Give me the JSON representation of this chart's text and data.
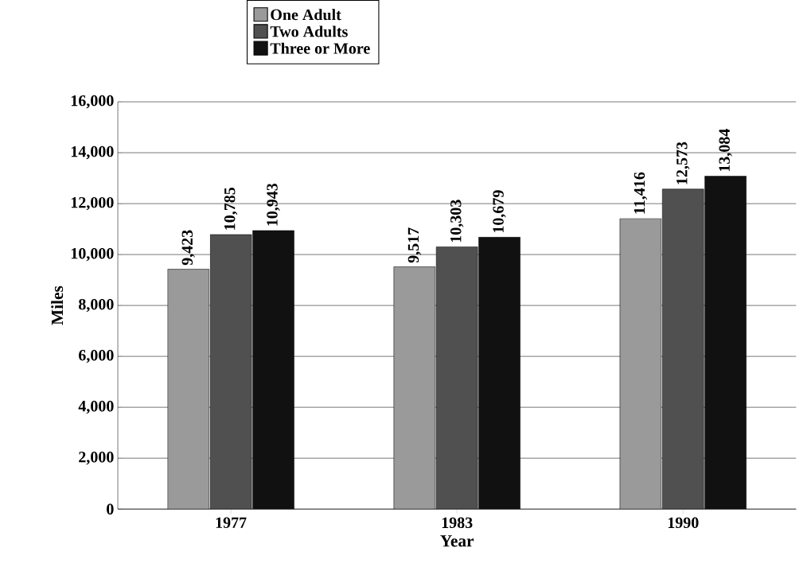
{
  "chart_data": {
    "type": "bar",
    "xlabel": "Year",
    "ylabel": "Miles",
    "categories": [
      "1977",
      "1983",
      "1990"
    ],
    "series": [
      {
        "name": "One Adult",
        "color": "#9a9a9a",
        "values": [
          9423,
          9517,
          11416
        ],
        "value_labels": [
          "9,423",
          "9,517",
          "11,416"
        ]
      },
      {
        "name": "Two Adults",
        "color": "#505050",
        "values": [
          10785,
          10303,
          12573
        ],
        "value_labels": [
          "10,785",
          "10,303",
          "12,573"
        ]
      },
      {
        "name": "Three or More",
        "color": "#111111",
        "values": [
          10943,
          10679,
          13084
        ],
        "value_labels": [
          "10,943",
          "10,679",
          "13,084"
        ]
      }
    ],
    "ylim": [
      0,
      16000
    ],
    "yticks": [
      0,
      {
        "value": 2000,
        "label": "2,000"
      },
      {
        "value": 4000,
        "label": "4,000"
      },
      {
        "value": 6000,
        "label": "6,000"
      },
      {
        "value": 8000,
        "label": "8,000"
      },
      {
        "value": 10000,
        "label": "10,000"
      },
      {
        "value": 12000,
        "label": "12,000"
      },
      {
        "value": 14000,
        "label": "14,000"
      },
      {
        "value": 16000,
        "label": "16,000"
      }
    ],
    "grid": "y",
    "legend": "top"
  }
}
